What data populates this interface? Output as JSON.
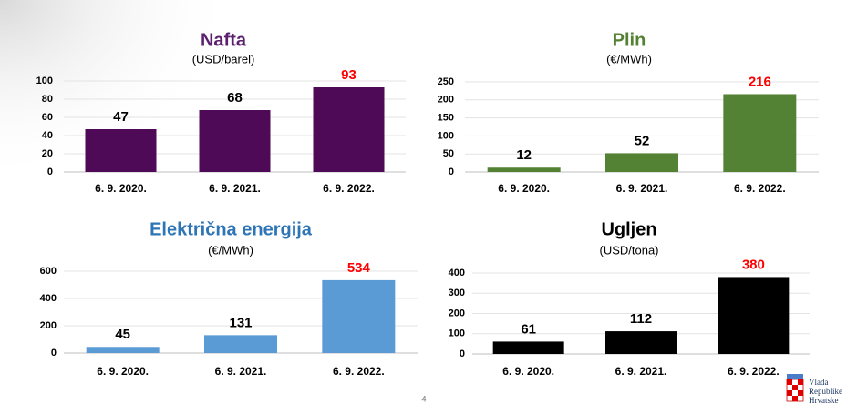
{
  "chart_data": [
    {
      "type": "bar",
      "title": "Nafta",
      "subtitle": "(USD/barel)",
      "title_color": "#5b1f6e",
      "categories": [
        "6. 9. 2020.",
        "6. 9. 2021.",
        "6. 9. 2022."
      ],
      "values": [
        47,
        68,
        93
      ],
      "color": "#4e0a56",
      "value_label_colors": [
        "#000000",
        "#000000",
        "#ff0000"
      ],
      "ylim": [
        0,
        100
      ],
      "yticks": [
        0,
        20,
        40,
        60,
        80,
        100
      ],
      "grid": true
    },
    {
      "type": "bar",
      "title": "Plin",
      "subtitle": "(€/MWh)",
      "title_color": "#548235",
      "categories": [
        "6. 9. 2020.",
        "6. 9. 2021.",
        "6. 9. 2022."
      ],
      "values": [
        12,
        52,
        216
      ],
      "color": "#548235",
      "value_label_colors": [
        "#000000",
        "#000000",
        "#ff0000"
      ],
      "ylim": [
        0,
        250
      ],
      "yticks": [
        0,
        50,
        100,
        150,
        200,
        250
      ],
      "grid": true
    },
    {
      "type": "bar",
      "title": "Električna energija",
      "subtitle": "(€/MWh)",
      "title_color": "#2e75b6",
      "categories": [
        "6. 9. 2020.",
        "6. 9. 2021.",
        "6. 9. 2022."
      ],
      "values": [
        45,
        131,
        534
      ],
      "color": "#5b9bd5",
      "value_label_colors": [
        "#000000",
        "#000000",
        "#ff0000"
      ],
      "ylim": [
        0,
        600
      ],
      "yticks": [
        0,
        200,
        400,
        600
      ],
      "grid": true
    },
    {
      "type": "bar",
      "title": "Ugljen",
      "subtitle": "(USD/tona)",
      "title_color": "#000000",
      "categories": [
        "6. 9. 2020.",
        "6. 9. 2021.",
        "6. 9. 2022."
      ],
      "values": [
        61,
        112,
        380
      ],
      "color": "#000000",
      "value_label_colors": [
        "#000000",
        "#000000",
        "#ff0000"
      ],
      "ylim": [
        0,
        400
      ],
      "yticks": [
        0,
        100,
        200,
        300,
        400
      ],
      "grid": true
    }
  ],
  "page_number": 4,
  "logo": [
    "Vlada",
    "Republike",
    "Hrvatske"
  ]
}
